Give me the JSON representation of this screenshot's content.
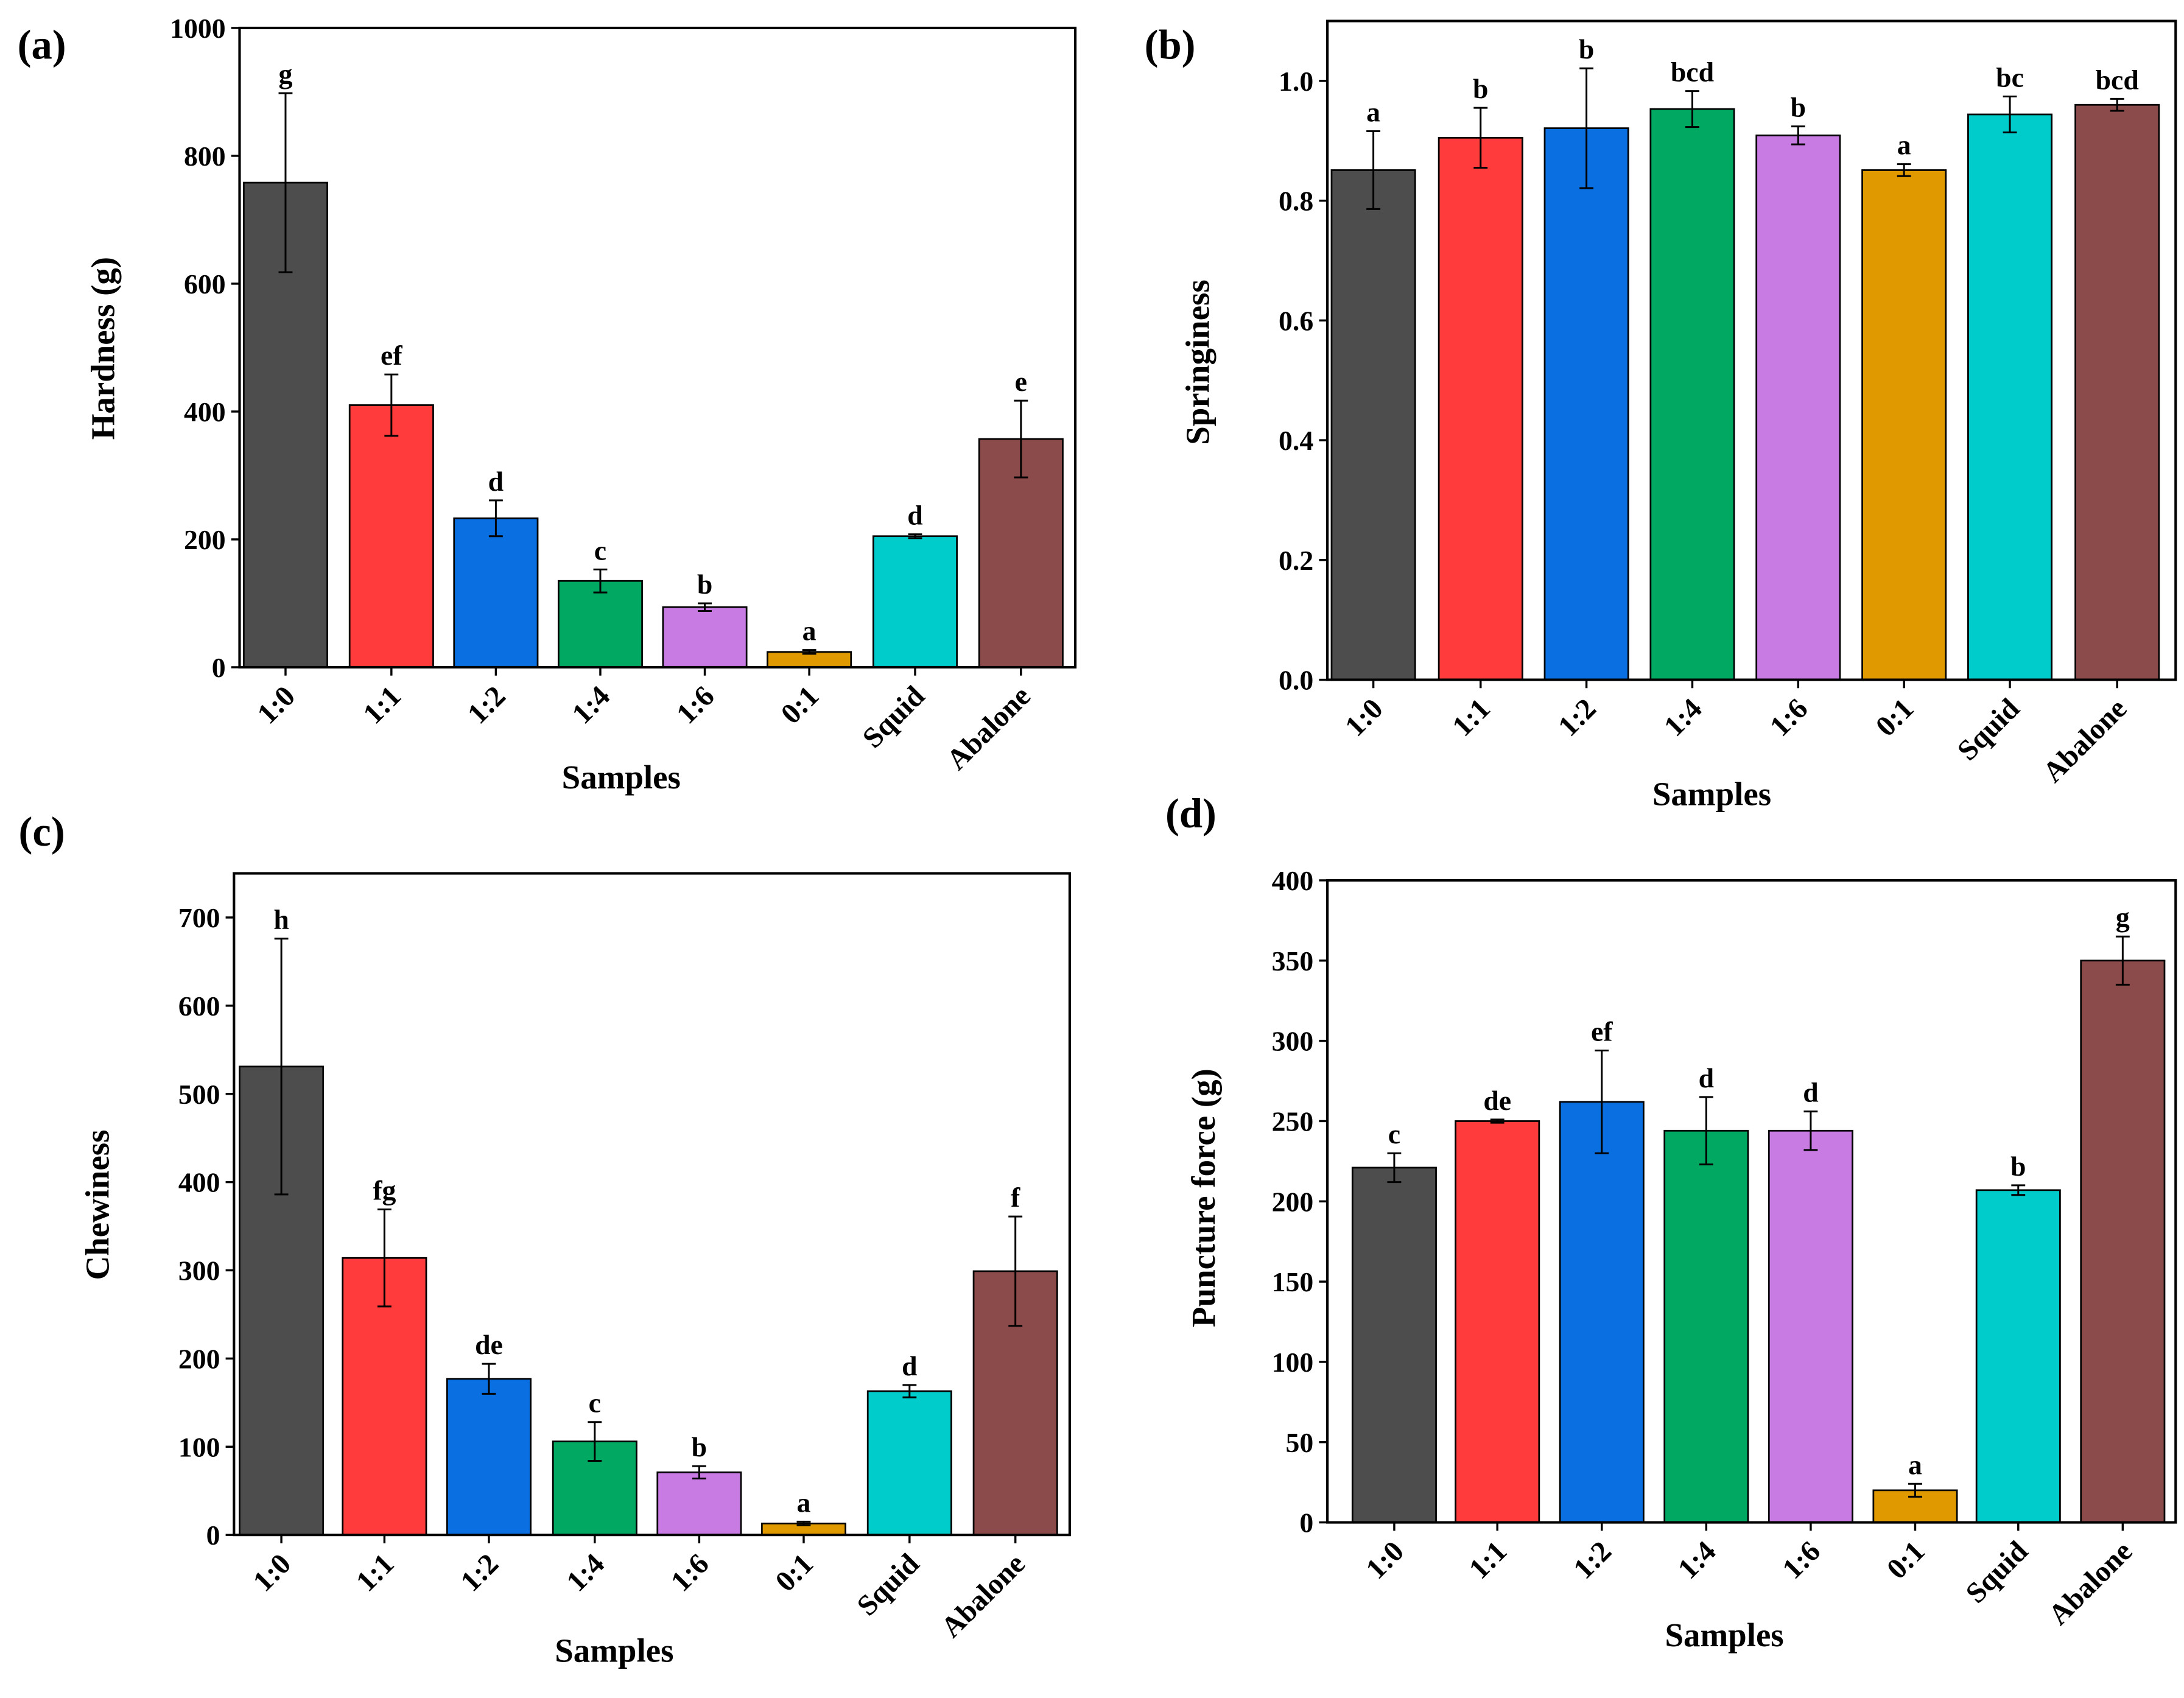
{
  "chart_data": [
    {
      "panel_label": "(a)",
      "type": "bar",
      "title": "",
      "xlabel": "Samples",
      "ylabel": "Hardness (g)",
      "ylim": [
        0,
        1000
      ],
      "yticks": [
        0,
        200,
        400,
        600,
        800,
        1000
      ],
      "ytick_labels": [
        "0",
        "200",
        "400",
        "600",
        "800",
        "1000"
      ],
      "categories": [
        "1:0",
        "1:1",
        "1:2",
        "1:4",
        "1:6",
        "0:1",
        "Squid",
        "Abalone"
      ],
      "values": [
        758,
        410,
        233,
        135,
        94,
        24,
        205,
        357
      ],
      "errors": [
        140,
        48,
        28,
        18,
        6,
        3,
        3,
        60
      ],
      "letters": [
        "g",
        "ef",
        "d",
        "c",
        "b",
        "a",
        "d",
        "e"
      ]
    },
    {
      "panel_label": "(b)",
      "type": "bar",
      "title": "",
      "xlabel": "Samples",
      "ylabel": "Springiness",
      "ylim": [
        0,
        1.1
      ],
      "yticks": [
        0,
        0.2,
        0.4,
        0.6,
        0.8,
        1.0
      ],
      "ytick_labels": [
        "0.0",
        "0.2",
        "0.4",
        "0.6",
        "0.8",
        "1.0"
      ],
      "categories": [
        "1:0",
        "1:1",
        "1:2",
        "1:4",
        "1:6",
        "0:1",
        "Squid",
        "Abalone"
      ],
      "values": [
        0.851,
        0.905,
        0.921,
        0.953,
        0.909,
        0.851,
        0.944,
        0.96
      ],
      "errors": [
        0.065,
        0.05,
        0.1,
        0.03,
        0.015,
        0.01,
        0.03,
        0.01
      ],
      "letters": [
        "a",
        "b",
        "b",
        "bcd",
        "b",
        "a",
        "bc",
        "bcd"
      ]
    },
    {
      "panel_label": "(c)",
      "type": "bar",
      "title": "",
      "xlabel": "Samples",
      "ylabel": "Chewiness",
      "ylim": [
        0,
        750
      ],
      "yticks": [
        0,
        100,
        200,
        300,
        400,
        500,
        600,
        700
      ],
      "ytick_labels": [
        "0",
        "100",
        "200",
        "300",
        "400",
        "500",
        "600",
        "700"
      ],
      "categories": [
        "1:0",
        "1:1",
        "1:2",
        "1:4",
        "1:6",
        "0:1",
        "Squid",
        "Abalone"
      ],
      "values": [
        531,
        314,
        177,
        106,
        71,
        13,
        163,
        299
      ],
      "errors": [
        145,
        55,
        17,
        22,
        7,
        2,
        7,
        62
      ],
      "letters": [
        "h",
        "fg",
        "de",
        "c",
        "b",
        "a",
        "d",
        "f"
      ]
    },
    {
      "panel_label": "(d)",
      "type": "bar",
      "title": "",
      "xlabel": "Samples",
      "ylabel": "Puncture force (g)",
      "ylim": [
        0,
        400
      ],
      "yticks": [
        0,
        50,
        100,
        150,
        200,
        250,
        300,
        350,
        400
      ],
      "ytick_labels": [
        "0",
        "50",
        "100",
        "150",
        "200",
        "250",
        "300",
        "350",
        "400"
      ],
      "categories": [
        "1:0",
        "1:1",
        "1:2",
        "1:4",
        "1:6",
        "0:1",
        "Squid",
        "Abalone"
      ],
      "values": [
        221,
        250,
        262,
        244,
        244,
        20,
        207,
        350
      ],
      "errors": [
        9,
        1,
        32,
        21,
        12,
        4,
        3,
        15
      ],
      "letters": [
        "c",
        "de",
        "ef",
        "d",
        "d",
        "a",
        "b",
        "g"
      ]
    }
  ],
  "colors": [
    "#4d4d4d",
    "#ff3b3b",
    "#0a6fe0",
    "#00a862",
    "#c77be3",
    "#e09a00",
    "#00cccc",
    "#8c4b4b"
  ]
}
